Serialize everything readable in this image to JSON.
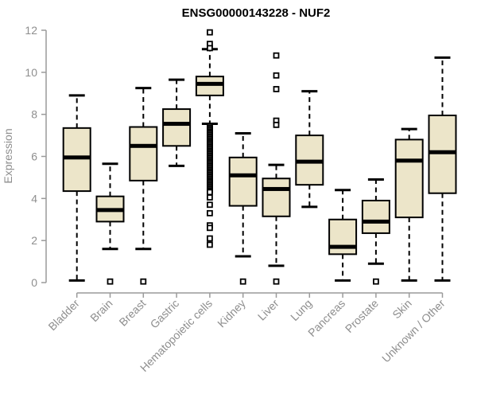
{
  "chart_data": {
    "type": "boxplot",
    "title": "ENSG00000143228 - NUF2",
    "ylabel": "Expression",
    "xlabel": "",
    "ylim": [
      0,
      12
    ],
    "yticks": [
      0,
      2,
      4,
      6,
      8,
      10,
      12
    ],
    "grid": false,
    "legend": "none",
    "categories": [
      "Bladder",
      "Brain",
      "Breast",
      "Gastric",
      "Hematopoietic cells",
      "Kidney",
      "Liver",
      "Lung",
      "Pancreas",
      "Prostate",
      "Skin",
      "Unknown / Other"
    ],
    "boxes": [
      {
        "category": "Bladder",
        "whisker_low": 0.1,
        "q1": 4.35,
        "median": 5.95,
        "q3": 7.35,
        "whisker_high": 8.9,
        "outliers": []
      },
      {
        "category": "Brain",
        "whisker_low": 1.6,
        "q1": 2.9,
        "median": 3.45,
        "q3": 4.1,
        "whisker_high": 5.65,
        "outliers": [
          0.05
        ]
      },
      {
        "category": "Breast",
        "whisker_low": 1.6,
        "q1": 4.85,
        "median": 6.5,
        "q3": 7.4,
        "whisker_high": 9.25,
        "outliers": [
          0.05
        ]
      },
      {
        "category": "Gastric",
        "whisker_low": 5.55,
        "q1": 6.5,
        "median": 7.55,
        "q3": 8.25,
        "whisker_high": 9.65,
        "outliers": []
      },
      {
        "category": "Hematopoietic cells",
        "whisker_low": 7.55,
        "q1": 8.9,
        "median": 9.45,
        "q3": 9.8,
        "whisker_high": 11.1,
        "outliers": [
          11.9,
          11.35,
          11.15,
          7.45,
          7.38,
          7.31,
          7.24,
          7.17,
          7.1,
          7.03,
          6.96,
          6.89,
          6.82,
          6.75,
          6.68,
          6.61,
          6.54,
          6.47,
          6.4,
          6.33,
          6.26,
          6.19,
          6.12,
          6.05,
          5.98,
          5.91,
          5.84,
          5.77,
          5.7,
          5.63,
          5.56,
          5.49,
          5.42,
          5.35,
          5.28,
          5.21,
          5.14,
          5.07,
          5.0,
          4.93,
          4.86,
          4.79,
          4.72,
          4.65,
          4.58,
          4.51,
          4.44,
          4.37,
          4.3,
          4.05,
          3.7,
          3.3,
          2.72,
          2.6,
          2.1,
          1.8
        ]
      },
      {
        "category": "Kidney",
        "whisker_low": 1.25,
        "q1": 3.65,
        "median": 5.1,
        "q3": 5.95,
        "whisker_high": 7.1,
        "outliers": [
          0.05
        ]
      },
      {
        "category": "Liver",
        "whisker_low": 0.8,
        "q1": 3.15,
        "median": 4.45,
        "q3": 4.95,
        "whisker_high": 5.6,
        "outliers": [
          10.8,
          9.85,
          9.2,
          7.7,
          7.5,
          0.05
        ]
      },
      {
        "category": "Lung",
        "whisker_low": 3.6,
        "q1": 4.65,
        "median": 5.75,
        "q3": 7.0,
        "whisker_high": 9.1,
        "outliers": []
      },
      {
        "category": "Pancreas",
        "whisker_low": 0.1,
        "q1": 1.35,
        "median": 1.7,
        "q3": 3.0,
        "whisker_high": 4.4,
        "outliers": []
      },
      {
        "category": "Prostate",
        "whisker_low": 0.9,
        "q1": 2.35,
        "median": 2.9,
        "q3": 3.9,
        "whisker_high": 4.9,
        "outliers": [
          0.05
        ]
      },
      {
        "category": "Skin",
        "whisker_low": 0.1,
        "q1": 3.1,
        "median": 5.8,
        "q3": 6.8,
        "whisker_high": 7.3,
        "outliers": []
      },
      {
        "category": "Unknown / Other",
        "whisker_low": 0.1,
        "q1": 4.25,
        "median": 6.2,
        "q3": 7.95,
        "whisker_high": 10.7,
        "outliers": []
      }
    ],
    "colors": {
      "box_fill": "#ece5c9",
      "line": "#000000",
      "axis": "#9a9a9a",
      "label": "#8e8e8e",
      "title": "#000000",
      "background": "#ffffff"
    }
  }
}
